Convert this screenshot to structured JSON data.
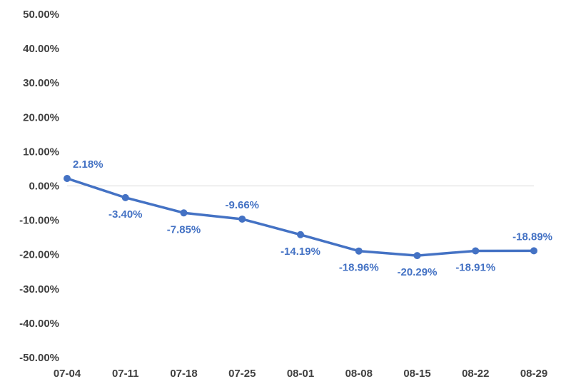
{
  "chart_data": {
    "type": "line",
    "title": "",
    "xlabel": "",
    "ylabel": "",
    "categories": [
      "07-04",
      "07-11",
      "07-18",
      "07-25",
      "08-01",
      "08-08",
      "08-15",
      "08-22",
      "08-29"
    ],
    "series": [
      {
        "values": [
          2.18,
          -3.4,
          -7.85,
          -9.66,
          -14.19,
          -18.96,
          -20.29,
          -18.91,
          -18.89
        ],
        "labels": [
          "2.18%",
          "-3.40%",
          "-7.85%",
          "-9.66%",
          "-14.19%",
          "-18.96%",
          "-20.29%",
          "-18.91%",
          "-18.89%"
        ],
        "color": "#4472C4"
      }
    ],
    "ylim": [
      -50,
      50
    ],
    "yticks": [
      "50.00%",
      "40.00%",
      "30.00%",
      "20.00%",
      "10.00%",
      "0.00%",
      "-10.00%",
      "-20.00%",
      "-30.00%",
      "-40.00%",
      "-50.00%"
    ],
    "ytick_values": [
      50,
      40,
      30,
      20,
      10,
      0,
      -10,
      -20,
      -30,
      -40,
      -50
    ],
    "grid": false,
    "zero_line": true,
    "legend": "none"
  }
}
